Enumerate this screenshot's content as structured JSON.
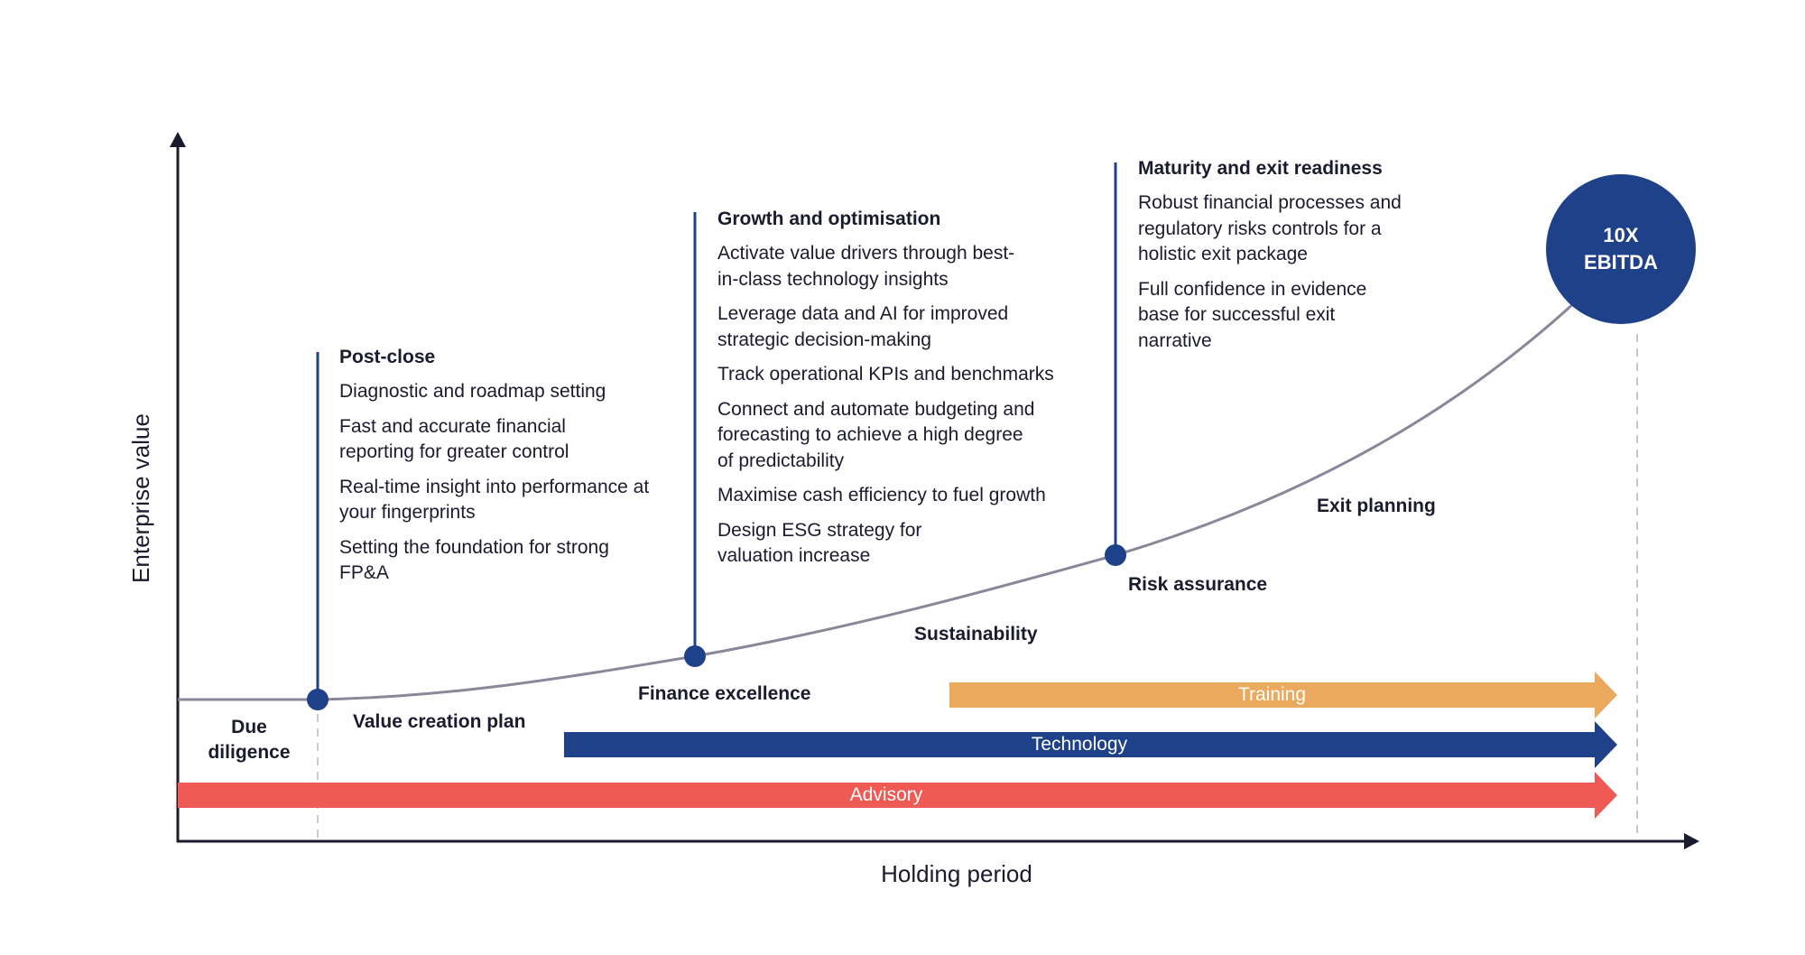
{
  "axes": {
    "x_label": "Holding period",
    "y_label": "Enterprise value"
  },
  "curve_labels": {
    "due_diligence": "Due\ndiligence",
    "value_creation_plan": "Value creation plan",
    "finance_excellence": "Finance excellence",
    "sustainability": "Sustainability",
    "risk_assurance": "Risk assurance",
    "exit_planning": "Exit planning"
  },
  "phases": [
    {
      "title": "Post-close",
      "items": [
        "Diagnostic and roadmap setting",
        "Fast and accurate financial reporting for greater control",
        "Real-time insight into performance at your fingerprints",
        "Setting the foundation for strong FP&A"
      ]
    },
    {
      "title": "Growth and optimisation",
      "items": [
        "Activate value drivers through best-in-class technology insights",
        "Leverage data and AI for improved strategic decision-making",
        "Track operational KPIs and benchmarks",
        "Connect and automate budgeting and forecasting to achieve a high degree of predictability",
        "Maximise cash efficiency to fuel growth",
        "Design ESG strategy for valuation increase"
      ]
    },
    {
      "title": "Maturity and exit readiness",
      "items": [
        "Robust financial processes and regulatory risks controls for a holistic exit package",
        "Full confidence in evidence base for successful exit narrative"
      ]
    }
  ],
  "target": {
    "line1": "10X",
    "line2": "EBITDA"
  },
  "service_arrows": [
    {
      "label": "Training",
      "color": "#eba95e"
    },
    {
      "label": "Technology",
      "color": "#1f4189"
    },
    {
      "label": "Advisory",
      "color": "#f05a55"
    }
  ],
  "colors": {
    "navy": "#1f4189",
    "curve": "#8a8799",
    "axis": "#1b1b2f"
  }
}
